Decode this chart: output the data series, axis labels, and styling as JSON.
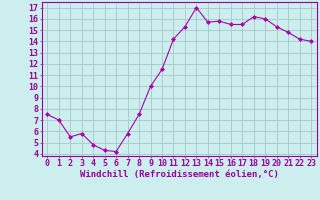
{
  "x": [
    0,
    1,
    2,
    3,
    4,
    5,
    6,
    7,
    8,
    9,
    10,
    11,
    12,
    13,
    14,
    15,
    16,
    17,
    18,
    19,
    20,
    21,
    22,
    23
  ],
  "y": [
    7.5,
    7.0,
    5.5,
    5.8,
    4.8,
    4.3,
    4.2,
    5.8,
    7.5,
    10.0,
    11.5,
    14.2,
    15.3,
    17.0,
    15.7,
    15.8,
    15.5,
    15.5,
    16.2,
    16.0,
    15.3,
    14.8,
    14.2,
    14.0
  ],
  "line_color": "#aa00aa",
  "marker": "D",
  "marker_size": 2,
  "bg_color": "#cceeee",
  "grid_color": "#aacccc",
  "xlabel": "Windchill (Refroidissement éolien,°C)",
  "ylabel_ticks": [
    4,
    5,
    6,
    7,
    8,
    9,
    10,
    11,
    12,
    13,
    14,
    15,
    16,
    17
  ],
  "xlim": [
    -0.5,
    23.5
  ],
  "ylim": [
    3.8,
    17.5
  ],
  "xtick_labels": [
    "0",
    "1",
    "2",
    "3",
    "4",
    "5",
    "6",
    "7",
    "8",
    "9",
    "10",
    "11",
    "12",
    "13",
    "14",
    "15",
    "16",
    "17",
    "18",
    "19",
    "20",
    "21",
    "22",
    "23"
  ],
  "tick_color": "#990099",
  "label_fontsize": 6.5,
  "tick_fontsize": 6.0
}
